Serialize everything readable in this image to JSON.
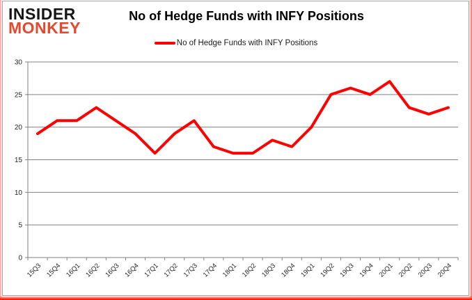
{
  "logo": {
    "line1": "INSIDER",
    "line2": "MONKEY",
    "line2_color": "#e2492f"
  },
  "header": {
    "title": "No of Hedge Funds with INFY Positions"
  },
  "legend": {
    "label": "No of Hedge Funds with INFY Positions"
  },
  "chart_data": {
    "type": "line",
    "title": "No of Hedge Funds with INFY Positions",
    "categories": [
      "15Q3",
      "15Q4",
      "16Q1",
      "16Q2",
      "16Q3",
      "16Q4",
      "17Q1",
      "17Q2",
      "17Q3",
      "17Q4",
      "18Q1",
      "18Q2",
      "18Q3",
      "18Q4",
      "19Q1",
      "19Q2",
      "19Q3",
      "19Q4",
      "20Q1",
      "20Q2",
      "20Q3",
      "20Q4"
    ],
    "series": [
      {
        "name": "No of Hedge Funds with INFY Positions",
        "values": [
          19,
          21,
          21,
          23,
          21,
          19,
          16,
          19,
          21,
          17,
          16,
          16,
          18,
          17,
          20,
          25,
          26,
          25,
          27,
          23,
          22,
          23
        ]
      }
    ],
    "xlabel": "",
    "ylabel": "",
    "ylim": [
      0,
      30
    ],
    "yticks": [
      0,
      5,
      10,
      15,
      20,
      25,
      30
    ],
    "grid": true,
    "legend_position": "top",
    "line_color": "#ff0000",
    "grid_color": "#808080",
    "axis_color": "#808080",
    "label_color": "#262626"
  }
}
